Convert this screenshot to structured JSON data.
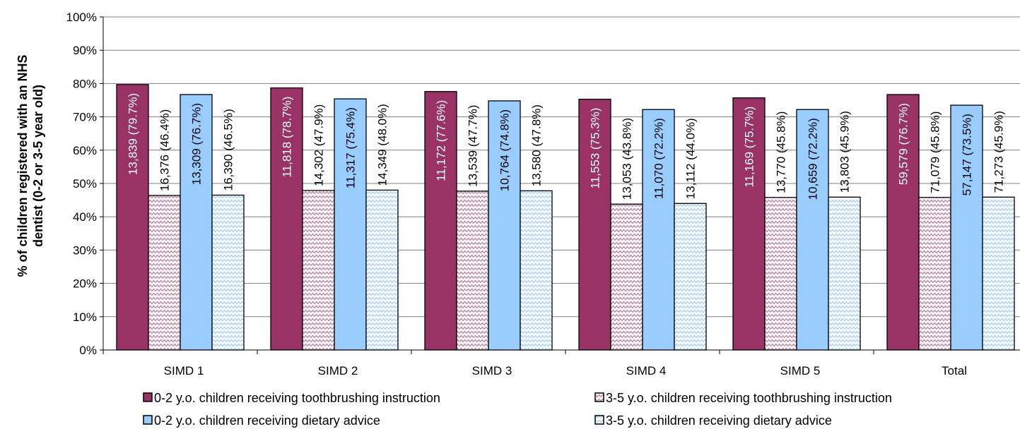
{
  "chart_data": {
    "type": "bar",
    "title": "",
    "xlabel": "",
    "ylabel_lines": [
      "% of children registered with an NHS",
      "dentist (0-2 or 3-5 year old)"
    ],
    "ylim": [
      0,
      100
    ],
    "y_ticks": [
      "0%",
      "10%",
      "20%",
      "30%",
      "40%",
      "50%",
      "60%",
      "70%",
      "80%",
      "90%",
      "100%"
    ],
    "grid": true,
    "legend_position": "bottom",
    "categories": [
      "SIMD 1",
      "SIMD 2",
      "SIMD 3",
      "SIMD 4",
      "SIMD 5",
      "Total"
    ],
    "series": [
      {
        "name": "0-2 y.o. children receiving toothbrushing instruction",
        "color": "#993366",
        "pattern": "solid",
        "values": [
          79.7,
          78.7,
          77.6,
          75.3,
          75.7,
          76.7
        ],
        "labels": [
          "13,839 (79.7%)",
          "11,818 (78.7%)",
          "11,172 (77.6%)",
          "11,553 (75.3%)",
          "11,169 (75.7%)",
          "59,579 (76.7%)"
        ]
      },
      {
        "name": "3-5 y.o. children receiving toothbrushing instruction",
        "color": "#993366",
        "pattern": "zigzag",
        "values": [
          46.4,
          47.9,
          47.7,
          43.8,
          45.8,
          45.8
        ],
        "labels": [
          "16,376 (46.4%)",
          "14,302 (47.9%)",
          "13,539 (47.7%)",
          "13,053 (43.8%)",
          "13,770 (45.8%)",
          "71,079 (45.8%)"
        ]
      },
      {
        "name": "0-2 y.o. children receiving dietary advice",
        "color": "#99CCFF",
        "pattern": "solid",
        "values": [
          76.7,
          75.4,
          74.8,
          72.2,
          72.2,
          73.5
        ],
        "labels": [
          "13,309 (76.7%)",
          "11,317 (75.4%)",
          "10,764 (74.8%)",
          "11,070 (72.2%)",
          "10,659 (72.2%)",
          "57,147 (73.5%)"
        ]
      },
      {
        "name": "3-5 y.o. children receiving dietary advice",
        "color": "#99CCFF",
        "pattern": "zigzag",
        "values": [
          46.5,
          48.0,
          47.8,
          44.0,
          45.9,
          45.9
        ],
        "labels": [
          "16,390 (46.5%)",
          "14,349 (48.0%)",
          "13,580 (47.8%)",
          "13,112 (44.0%)",
          "13,803 (45.9%)",
          "71,273 (45.9%)"
        ]
      }
    ]
  }
}
